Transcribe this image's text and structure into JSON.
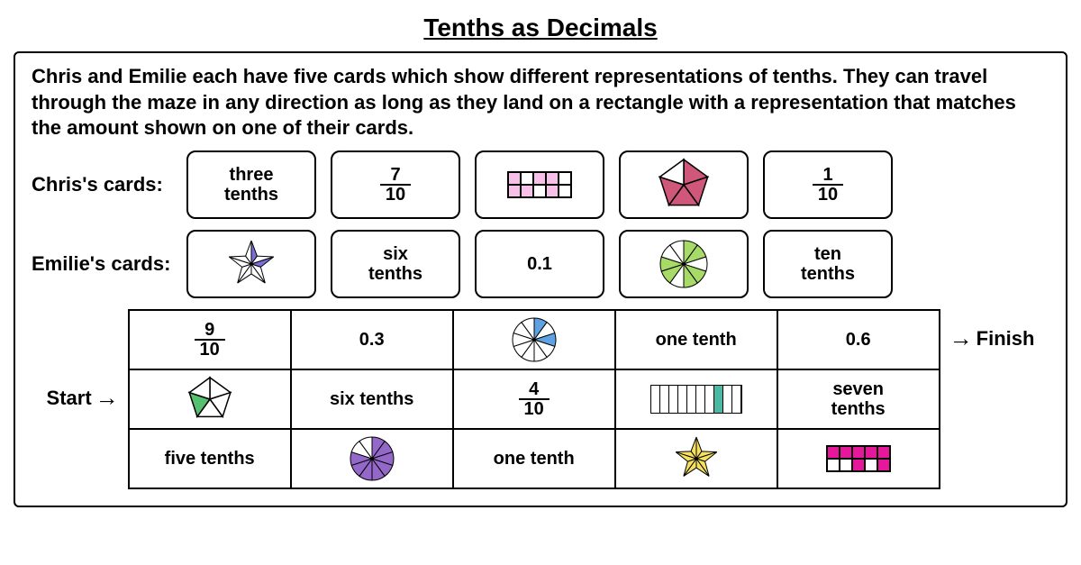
{
  "title": "Tenths as Decimals",
  "instructions": "Chris and Emilie each have five cards which show different representations of tenths. They can travel through the maze in any direction as long as they land on a rectangle with a representation that matches the amount shown on one of their cards.",
  "labels": {
    "chris": "Chris's cards:",
    "emilie": "Emilie's cards:",
    "start": "Start",
    "finish": "Finish"
  },
  "colors": {
    "pink_light": "#f7c0e8",
    "pink": "#e85fb8",
    "magenta": "#e6179b",
    "rose": "#cf577a",
    "purple": "#9468c8",
    "green_light": "#a8da68",
    "green": "#56c070",
    "teal": "#4ab8a3",
    "blue": "#5fa2e2",
    "indigo": "#7a6ed8",
    "yellow": "#f5e060",
    "white": "#ffffff",
    "black": "#000000"
  },
  "chris_cards": [
    {
      "type": "words",
      "line1": "three",
      "line2": "tenths"
    },
    {
      "type": "fraction",
      "num": "7",
      "den": "10"
    },
    {
      "type": "tenbar_2x5",
      "filled": [
        0,
        2,
        3,
        5,
        6,
        8
      ],
      "fill_color": "#f7c0e8"
    },
    {
      "type": "pentagon",
      "shaded": [
        0,
        1,
        2,
        3
      ],
      "fill_color": "#cf577a"
    },
    {
      "type": "fraction",
      "num": "1",
      "den": "10"
    }
  ],
  "emilie_cards": [
    {
      "type": "star",
      "shaded": [
        1,
        3
      ],
      "fill_color": "#7a6ed8"
    },
    {
      "type": "words",
      "line1": "six",
      "line2": "tenths"
    },
    {
      "type": "decimal",
      "text": "0.1"
    },
    {
      "type": "wheel",
      "shaded": [
        0,
        1,
        3,
        4,
        6,
        7
      ],
      "fill_color": "#a8da68"
    },
    {
      "type": "words",
      "line1": "ten",
      "line2": "tenths"
    }
  ],
  "maze": [
    [
      {
        "type": "fraction",
        "num": "9",
        "den": "10"
      },
      {
        "type": "decimal",
        "text": "0.3"
      },
      {
        "type": "wheel",
        "shaded": [
          0,
          2
        ],
        "fill_color": "#5fa2e2"
      },
      {
        "type": "words",
        "line1": "one tenth"
      },
      {
        "type": "decimal",
        "text": "0.6"
      }
    ],
    [
      {
        "type": "pentagon",
        "shaded": [
          3
        ],
        "fill_color": "#56c070"
      },
      {
        "type": "words",
        "line1": "six tenths"
      },
      {
        "type": "fraction",
        "num": "4",
        "den": "10"
      },
      {
        "type": "tenbar_1x10",
        "filled": [
          7
        ],
        "fill_color": "#4ab8a3"
      },
      {
        "type": "words",
        "line1": "seven",
        "line2": "tenths"
      }
    ],
    [
      {
        "type": "words",
        "line1": "five tenths"
      },
      {
        "type": "wheel",
        "shaded": [
          0,
          1,
          2,
          3,
          4,
          5,
          6,
          7
        ],
        "fill_color": "#9468c8"
      },
      {
        "type": "words",
        "line1": "one tenth"
      },
      {
        "type": "star",
        "shaded": [],
        "fill_color": "#f5e060",
        "fill_all": true
      },
      {
        "type": "tenbar_2x5",
        "filled": [
          0,
          1,
          2,
          3,
          4,
          7,
          9
        ],
        "fill_color": "#e6179b"
      }
    ]
  ]
}
